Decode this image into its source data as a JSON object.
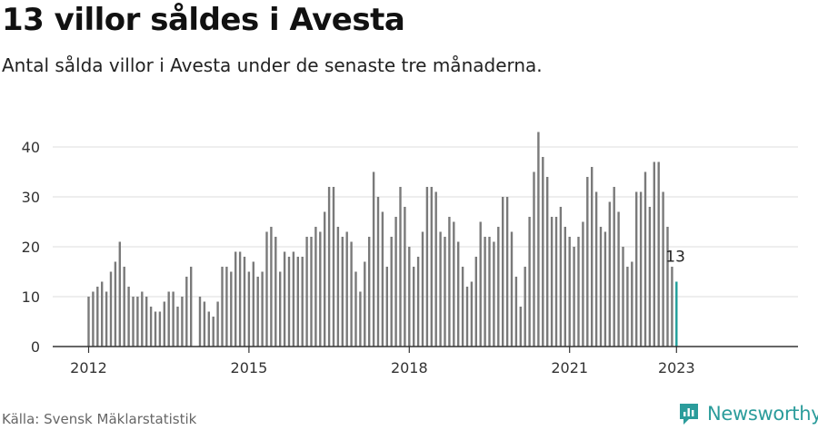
{
  "title": "13 villor såldes i Avesta",
  "subtitle": "Antal sålda villor i Avesta under de senaste tre månaderna.",
  "source": "Källa: Svensk Mäklarstatistik",
  "brand": {
    "name": "Newsworthy"
  },
  "colors": {
    "bar": "#7a7a7a",
    "highlight": "#1e9e9a",
    "grid": "#dddddd",
    "axis": "#333333",
    "logo": "#2b9c9b"
  },
  "chart_data": {
    "type": "bar",
    "x_unit": "month",
    "x_start": "2012-01",
    "values": [
      10,
      11,
      12,
      13,
      11,
      15,
      17,
      21,
      16,
      12,
      10,
      10,
      11,
      10,
      8,
      7,
      7,
      9,
      11,
      11,
      8,
      10,
      14,
      16,
      null,
      10,
      9,
      7,
      6,
      9,
      16,
      16,
      15,
      19,
      19,
      18,
      15,
      17,
      14,
      15,
      23,
      24,
      22,
      15,
      19,
      18,
      19,
      18,
      18,
      22,
      22,
      24,
      23,
      27,
      32,
      32,
      24,
      22,
      23,
      21,
      15,
      11,
      17,
      22,
      35,
      30,
      27,
      16,
      22,
      26,
      32,
      28,
      20,
      16,
      18,
      23,
      32,
      32,
      31,
      23,
      22,
      26,
      25,
      21,
      16,
      12,
      13,
      18,
      25,
      22,
      22,
      21,
      24,
      30,
      30,
      23,
      14,
      8,
      16,
      26,
      35,
      43,
      38,
      34,
      26,
      26,
      28,
      24,
      22,
      20,
      22,
      25,
      34,
      36,
      31,
      24,
      23,
      29,
      32,
      27,
      20,
      16,
      17,
      31,
      31,
      35,
      28,
      37,
      37,
      31,
      24,
      16,
      13
    ],
    "highlight_last": true,
    "last_label": "13",
    "xticks": [
      "2012",
      "2015",
      "2018",
      "2021",
      "2023"
    ],
    "yticks": [
      "0",
      "10",
      "20",
      "30",
      "40"
    ],
    "ylim": [
      0,
      45
    ],
    "grid": true
  }
}
